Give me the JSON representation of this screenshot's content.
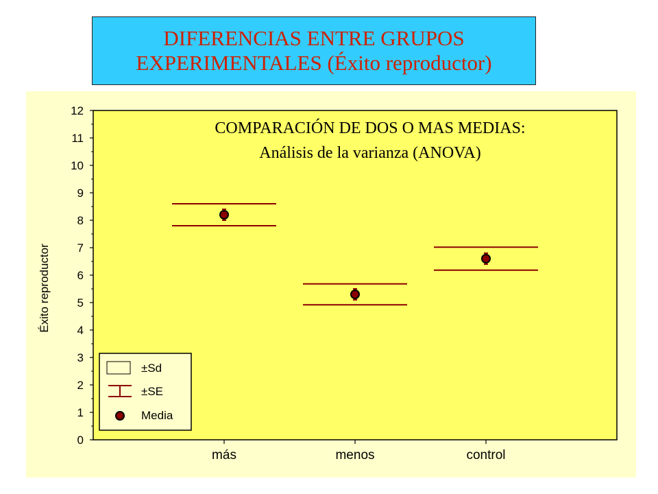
{
  "header": {
    "line1": "DIFERENCIAS ENTRE GRUPOS",
    "line2": "EXPERIMENTALES (Éxito reproductor)"
  },
  "chart_data": {
    "type": "scatter",
    "subtype": "mean-plot-with-error-bars",
    "annotation_line1": "COMPARACIÓN DE DOS O MAS MEDIAS:",
    "annotation_line2": "Análisis de la varianza (ANOVA)",
    "ylabel": "Éxito reproductor",
    "ylim": [
      0,
      12
    ],
    "yticks": [
      0,
      1,
      2,
      3,
      4,
      5,
      6,
      7,
      8,
      9,
      10,
      11,
      12
    ],
    "categories": [
      "más",
      "menos",
      "control"
    ],
    "mean": [
      8.2,
      5.3,
      6.6
    ],
    "se": [
      0.2,
      0.2,
      0.2
    ],
    "sd": [
      0.4,
      0.38,
      0.42
    ],
    "legend": {
      "placement": "bottom-left",
      "items": [
        "±Sd",
        "±SE",
        "Media"
      ]
    },
    "colors": {
      "background": "#ffffcc",
      "error_bar": "#8b0000",
      "marker_fill": "#8b0000",
      "marker_edge": "#000000"
    }
  }
}
